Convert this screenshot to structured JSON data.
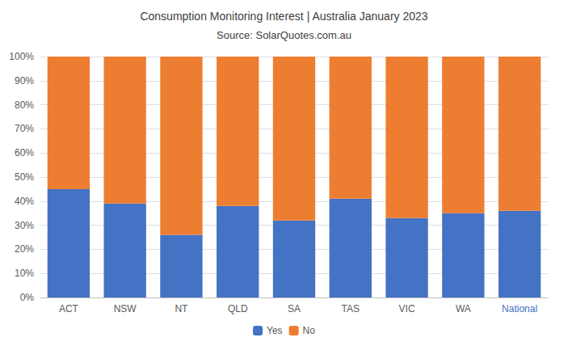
{
  "chart_data": {
    "type": "bar",
    "title": "Consumption Monitoring Interest | Australia January 2023",
    "subtitle": "Source: SolarQuotes.com.au",
    "categories": [
      "ACT",
      "NSW",
      "NT",
      "QLD",
      "SA",
      "TAS",
      "VIC",
      "WA",
      "National"
    ],
    "series": [
      {
        "name": "Yes",
        "color": "#4472C4",
        "values": [
          45,
          39,
          26,
          38,
          32,
          41,
          33,
          35,
          36
        ]
      },
      {
        "name": "No",
        "color": "#ED7D31",
        "values": [
          55,
          61,
          74,
          62,
          68,
          59,
          67,
          65,
          64
        ]
      }
    ],
    "stacked": true,
    "ylim": [
      0,
      100
    ],
    "yticks": [
      {
        "value": 0,
        "label": "0%"
      },
      {
        "value": 10,
        "label": "10%"
      },
      {
        "value": 20,
        "label": "20%"
      },
      {
        "value": 30,
        "label": "30%"
      },
      {
        "value": 40,
        "label": "40%"
      },
      {
        "value": 50,
        "label": "50%"
      },
      {
        "value": 60,
        "label": "60%"
      },
      {
        "value": 70,
        "label": "70%"
      },
      {
        "value": 80,
        "label": "80%"
      },
      {
        "value": 90,
        "label": "90%"
      },
      {
        "value": 100,
        "label": "100%"
      }
    ],
    "grid": true,
    "legend": "bottom"
  }
}
